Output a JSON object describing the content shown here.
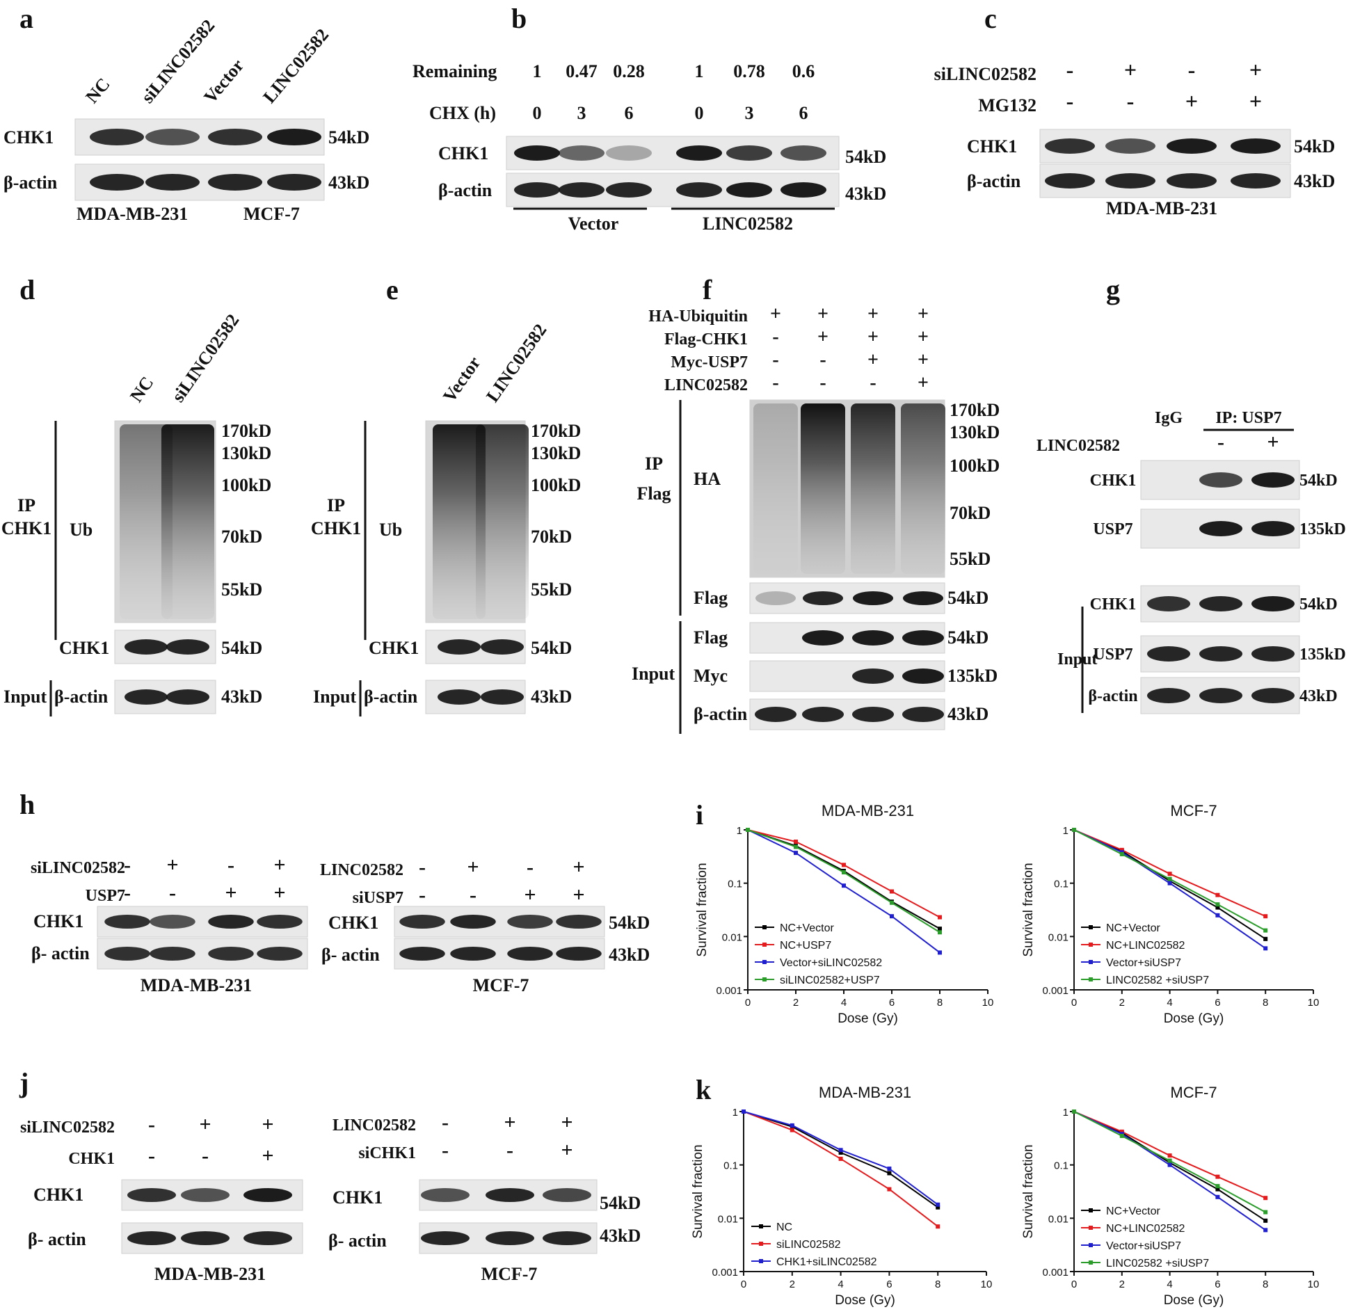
{
  "panel_letters": [
    "a",
    "b",
    "c",
    "d",
    "e",
    "f",
    "g",
    "h",
    "i",
    "j",
    "k"
  ],
  "panel_a": {
    "lanes": [
      "NC",
      "siLINC02582",
      "Vector",
      "LINC02582"
    ],
    "rows": [
      {
        "label": "CHK1",
        "size": "54kD"
      },
      {
        "label": "β-actin",
        "size": "43kD"
      }
    ],
    "cells": [
      "MDA-MB-231",
      "MCF-7"
    ],
    "band_intensity": {
      "CHK1": [
        0.85,
        0.7,
        0.85,
        0.95
      ],
      "β-actin": [
        0.9,
        0.9,
        0.9,
        0.9
      ]
    }
  },
  "panel_b": {
    "remaining_label": "Remaining",
    "remaining": [
      "1",
      "0.47",
      "0.28",
      "1",
      "0.78",
      "0.6"
    ],
    "chx_label": "CHX (h)",
    "chx": [
      "0",
      "3",
      "6",
      "0",
      "3",
      "6"
    ],
    "rows": [
      {
        "label": "CHK1",
        "size": "54kD"
      },
      {
        "label": "β-actin",
        "size": "43kD"
      }
    ],
    "groups": [
      "Vector",
      "LINC02582"
    ],
    "band_intensity": {
      "CHK1": [
        0.95,
        0.6,
        0.3,
        0.95,
        0.8,
        0.7
      ],
      "β-actin": [
        0.9,
        0.9,
        0.9,
        0.9,
        0.95,
        0.95
      ]
    }
  },
  "panel_c": {
    "treatments": [
      {
        "label": "siLINC02582",
        "signs": [
          "-",
          "+",
          "-",
          "+"
        ]
      },
      {
        "label": "MG132",
        "signs": [
          "-",
          "-",
          "+",
          "+"
        ]
      }
    ],
    "rows": [
      {
        "label": "CHK1",
        "size": "54kD"
      },
      {
        "label": "β-actin",
        "size": "43kD"
      }
    ],
    "cell": "MDA-MB-231",
    "band_intensity": {
      "CHK1": [
        0.85,
        0.7,
        0.95,
        0.95
      ],
      "β-actin": [
        0.9,
        0.9,
        0.9,
        0.9
      ]
    }
  },
  "panel_d": {
    "lanes": [
      "NC",
      "siLINC02582"
    ],
    "ip_label": [
      "IP",
      "CHK1"
    ],
    "ub_label": "Ub",
    "markers": [
      "170kD",
      "130kD",
      "100kD",
      "70kD",
      "55kD"
    ],
    "rows": [
      {
        "label": "CHK1",
        "size": "54kD"
      },
      {
        "label": "β-actin",
        "size": "43kD"
      }
    ],
    "input_label": "Input"
  },
  "panel_e": {
    "lanes": [
      "Vector",
      "LINC02582"
    ],
    "ip_label": [
      "IP",
      "CHK1"
    ],
    "ub_label": "Ub",
    "markers": [
      "170kD",
      "130kD",
      "100kD",
      "70kD",
      "55kD"
    ],
    "rows": [
      {
        "label": "CHK1",
        "size": "54kD"
      },
      {
        "label": "β-actin",
        "size": "43kD"
      }
    ],
    "input_label": "Input"
  },
  "panel_f": {
    "treatments": [
      {
        "label": "HA-Ubiquitin",
        "signs": [
          "+",
          "+",
          "+",
          "+"
        ]
      },
      {
        "label": "Flag-CHK1",
        "signs": [
          "-",
          "+",
          "+",
          "+"
        ]
      },
      {
        "label": "Myc-USP7",
        "signs": [
          "-",
          "-",
          "+",
          "+"
        ]
      },
      {
        "label": "LINC02582",
        "signs": [
          "-",
          "-",
          "-",
          "+"
        ]
      }
    ],
    "ip_label": [
      "IP",
      "Flag"
    ],
    "ha_label": "HA",
    "markers": [
      "170kD",
      "130kD",
      "100kD",
      "70kD",
      "55kD"
    ],
    "ip_rows": [
      {
        "label": "Flag",
        "size": "54kD"
      }
    ],
    "input_label": "Input",
    "input_rows": [
      {
        "label": "Flag",
        "size": "54kD"
      },
      {
        "label": "Myc",
        "size": "135kD"
      },
      {
        "label": "β-actin",
        "size": "43kD"
      }
    ]
  },
  "panel_g": {
    "igg": "IgG",
    "ip": "IP: USP7",
    "treatment": {
      "label": "LINC02582",
      "signs": [
        "-",
        "+"
      ]
    },
    "ip_rows": [
      {
        "label": "CHK1",
        "size": "54kD"
      },
      {
        "label": "USP7",
        "size": "135kD"
      }
    ],
    "input_label": "Input",
    "input_rows": [
      {
        "label": "CHK1",
        "size": "54kD"
      },
      {
        "label": "USP7",
        "size": "135kD"
      },
      {
        "label": "β-actin",
        "size": "43kD"
      }
    ]
  },
  "panel_h": {
    "left": {
      "treatments": [
        {
          "label": "siLINC02582",
          "signs": [
            "-",
            "+",
            "-",
            "+"
          ]
        },
        {
          "label": "USP7",
          "signs": [
            "-",
            "-",
            "+",
            "+"
          ]
        }
      ],
      "cell": "MDA-MB-231"
    },
    "right": {
      "treatments": [
        {
          "label": "LINC02582",
          "signs": [
            "-",
            "+",
            "-",
            "+"
          ]
        },
        {
          "label": "siUSP7",
          "signs": [
            "-",
            "-",
            "+",
            "+"
          ]
        }
      ],
      "cell": "MCF-7"
    },
    "rows": [
      {
        "label": "CHK1",
        "size": "54kD"
      },
      {
        "label": "β- actin",
        "size": "43kD"
      }
    ]
  },
  "panel_j": {
    "left": {
      "treatments": [
        {
          "label": "siLINC02582",
          "signs": [
            "-",
            "+",
            "+"
          ]
        },
        {
          "label": "CHK1",
          "signs": [
            "-",
            "-",
            "+"
          ]
        }
      ],
      "cell": "MDA-MB-231"
    },
    "right": {
      "treatments": [
        {
          "label": "LINC02582",
          "signs": [
            "-",
            "+",
            "+"
          ]
        },
        {
          "label": "siCHK1",
          "signs": [
            "-",
            "-",
            "+"
          ]
        }
      ],
      "cell": "MCF-7"
    },
    "rows": [
      {
        "label": "CHK1",
        "size": "54kD"
      },
      {
        "label": "β- actin",
        "size": "43kD"
      }
    ]
  },
  "chart_data": [
    {
      "panel": "i",
      "type": "line",
      "title": "MDA-MB-231",
      "xlabel": "Dose (Gy)",
      "ylabel": "Survival fraction",
      "yscale": "log",
      "xlim": [
        0,
        10
      ],
      "ylim": [
        0.001,
        1
      ],
      "x": [
        0,
        2,
        4,
        6,
        8
      ],
      "series": [
        {
          "name": "NC+Vector",
          "color": "#000000",
          "values": [
            1,
            0.5,
            0.17,
            0.045,
            0.014
          ]
        },
        {
          "name": "NC+USP7",
          "color": "#e41a1c",
          "values": [
            1,
            0.6,
            0.22,
            0.07,
            0.023
          ]
        },
        {
          "name": "Vector+siLINC02582",
          "color": "#1f1fd0",
          "values": [
            1,
            0.37,
            0.09,
            0.024,
            0.005
          ]
        },
        {
          "name": "siLINC02582+USP7",
          "color": "#2a9d2a",
          "values": [
            1,
            0.48,
            0.16,
            0.043,
            0.012
          ]
        }
      ]
    },
    {
      "panel": "i",
      "type": "line",
      "title": "MCF-7",
      "xlabel": "Dose (Gy)",
      "ylabel": "Survival fraction",
      "yscale": "log",
      "xlim": [
        0,
        10
      ],
      "ylim": [
        0.001,
        1
      ],
      "x": [
        0,
        2,
        4,
        6,
        8
      ],
      "series": [
        {
          "name": "NC+Vector",
          "color": "#000000",
          "values": [
            1,
            0.4,
            0.11,
            0.035,
            0.009
          ]
        },
        {
          "name": "NC+LINC02582",
          "color": "#e41a1c",
          "values": [
            1,
            0.42,
            0.15,
            0.06,
            0.024
          ]
        },
        {
          "name": "Vector+siUSP7",
          "color": "#1f1fd0",
          "values": [
            1,
            0.38,
            0.1,
            0.025,
            0.006
          ]
        },
        {
          "name": "LINC02582 +siUSP7",
          "color": "#2a9d2a",
          "values": [
            1,
            0.35,
            0.12,
            0.04,
            0.013
          ]
        }
      ]
    },
    {
      "panel": "k",
      "type": "line",
      "title": "MDA-MB-231",
      "xlabel": "Dose (Gy)",
      "ylabel": "Survival fraction",
      "yscale": "log",
      "xlim": [
        0,
        10
      ],
      "ylim": [
        0.001,
        1
      ],
      "x": [
        0,
        2,
        4,
        6,
        8
      ],
      "series": [
        {
          "name": "NC",
          "color": "#000000",
          "values": [
            1,
            0.52,
            0.17,
            0.07,
            0.016
          ]
        },
        {
          "name": "siLINC02582",
          "color": "#e41a1c",
          "values": [
            1,
            0.45,
            0.13,
            0.035,
            0.007
          ]
        },
        {
          "name": "CHK1+siLINC02582",
          "color": "#1f1fd0",
          "values": [
            1,
            0.55,
            0.19,
            0.085,
            0.018
          ]
        }
      ]
    },
    {
      "panel": "k",
      "type": "line",
      "title": "MCF-7",
      "xlabel": "Dose (Gy)",
      "ylabel": "Survival fraction",
      "yscale": "log",
      "xlim": [
        0,
        10
      ],
      "ylim": [
        0.001,
        1
      ],
      "x": [
        0,
        2,
        4,
        6,
        8
      ],
      "series": [
        {
          "name": "NC+Vector",
          "color": "#000000",
          "values": [
            1,
            0.4,
            0.11,
            0.035,
            0.009
          ]
        },
        {
          "name": "NC+LINC02582",
          "color": "#e41a1c",
          "values": [
            1,
            0.42,
            0.15,
            0.06,
            0.024
          ]
        },
        {
          "name": "Vector+siUSP7",
          "color": "#1f1fd0",
          "values": [
            1,
            0.38,
            0.1,
            0.025,
            0.006
          ]
        },
        {
          "name": "LINC02582 +siUSP7",
          "color": "#2a9d2a",
          "values": [
            1,
            0.35,
            0.12,
            0.04,
            0.013
          ]
        }
      ]
    }
  ]
}
